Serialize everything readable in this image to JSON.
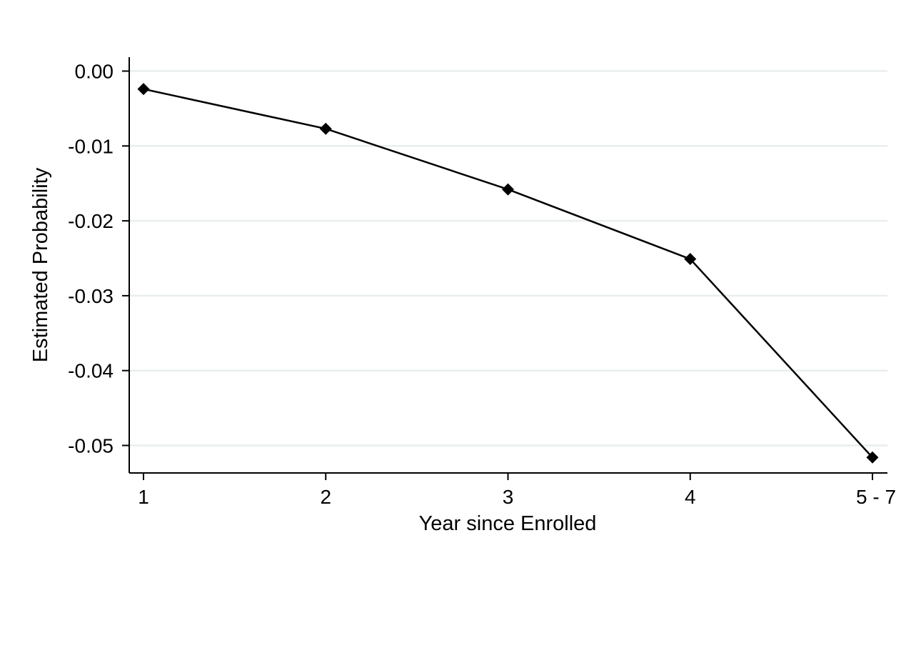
{
  "chart_data": {
    "type": "line",
    "categories": [
      "1",
      "2",
      "3",
      "4",
      "5 - 7"
    ],
    "series": [
      {
        "values": [
          -0.0024,
          -0.0077,
          -0.0158,
          -0.0251,
          -0.0516
        ]
      }
    ],
    "xlabel": "Year since Enrolled",
    "ylabel": "Estimated Probability",
    "ylim": [
      -0.052,
      0.0
    ],
    "yticks": [
      0.0,
      -0.01,
      -0.02,
      -0.03,
      -0.04,
      -0.05
    ],
    "ytick_labels": [
      "0.00",
      "-0.01",
      "-0.02",
      "-0.03",
      "-0.04",
      "-0.05"
    ],
    "grid": true,
    "marker": "diamond",
    "line_color": "#000000",
    "grid_color": "#e8eeee",
    "legend": "none"
  }
}
